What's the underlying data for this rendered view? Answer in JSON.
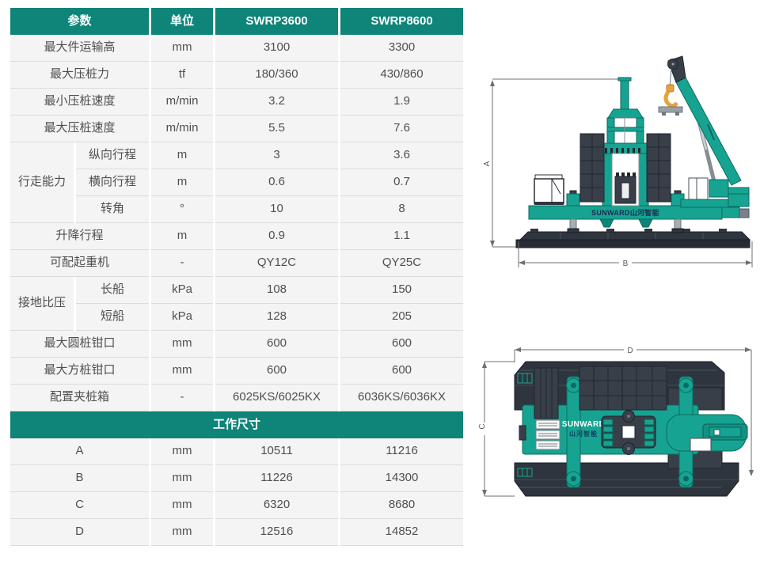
{
  "table": {
    "header": {
      "param": "参数",
      "unit": "单位",
      "model1": "SWRP3600",
      "model2": "SWRP8600"
    },
    "rows": [
      {
        "param": "最大件运输高",
        "unit": "mm",
        "v1": "3100",
        "v2": "3300"
      },
      {
        "param": "最大压桩力",
        "unit": "tf",
        "v1": "180/360",
        "v2": "430/860"
      },
      {
        "param": "最小压桩速度",
        "unit": "m/min",
        "v1": "3.2",
        "v2": "1.9"
      },
      {
        "param": "最大压桩速度",
        "unit": "m/min",
        "v1": "5.5",
        "v2": "7.6"
      },
      {
        "group": "行走能力",
        "group_span": 3,
        "param": "纵向行程",
        "unit": "m",
        "v1": "3",
        "v2": "3.6"
      },
      {
        "in_group": true,
        "param": "横向行程",
        "unit": "m",
        "v1": "0.6",
        "v2": "0.7"
      },
      {
        "in_group": true,
        "param": "转角",
        "unit": "°",
        "v1": "10",
        "v2": "8"
      },
      {
        "param": "升降行程",
        "unit": "m",
        "v1": "0.9",
        "v2": "1.1"
      },
      {
        "param": "可配起重机",
        "unit": "-",
        "v1": "QY12C",
        "v2": "QY25C"
      },
      {
        "group": "接地比压",
        "group_span": 2,
        "param": "长船",
        "unit": "kPa",
        "v1": "108",
        "v2": "150"
      },
      {
        "in_group": true,
        "param": "短船",
        "unit": "kPa",
        "v1": "128",
        "v2": "205"
      },
      {
        "param": "最大圆桩钳口",
        "unit": "mm",
        "v1": "600",
        "v2": "600"
      },
      {
        "param": "最大方桩钳口",
        "unit": "mm",
        "v1": "600",
        "v2": "600"
      },
      {
        "param": "配置夹桩箱",
        "unit": "-",
        "v1": "6025KS/6025KX",
        "v2": "6036KS/6036KX"
      }
    ],
    "section_header": "工作尺寸",
    "dim_rows": [
      {
        "param": "A",
        "unit": "mm",
        "v1": "10511",
        "v2": "11216"
      },
      {
        "param": "B",
        "unit": "mm",
        "v1": "11226",
        "v2": "14300"
      },
      {
        "param": "C",
        "unit": "mm",
        "v1": "6320",
        "v2": "8680"
      },
      {
        "param": "D",
        "unit": "mm",
        "v1": "12516",
        "v2": "14852"
      }
    ]
  },
  "drawings": {
    "side_view": {
      "dim_vertical": "A",
      "dim_horizontal": "B",
      "brand": "SUNWARD山河智能"
    },
    "top_view": {
      "dim_vertical": "C",
      "dim_horizontal": "D",
      "brand_line1": "SUNWARD",
      "brand_line2": "山河智能"
    }
  },
  "colors": {
    "header_teal": "#0F8478",
    "machine_teal": "#17A392",
    "machine_teal_dark": "#0B6B5E",
    "counterweight_gray": "#383F48",
    "pontoon_gray": "#2F353E",
    "hook_orange": "#E8A33C",
    "cell_bg": "#F4F4F5",
    "row_border": "#DBDBDB",
    "body_text": "#4F4F4F"
  }
}
